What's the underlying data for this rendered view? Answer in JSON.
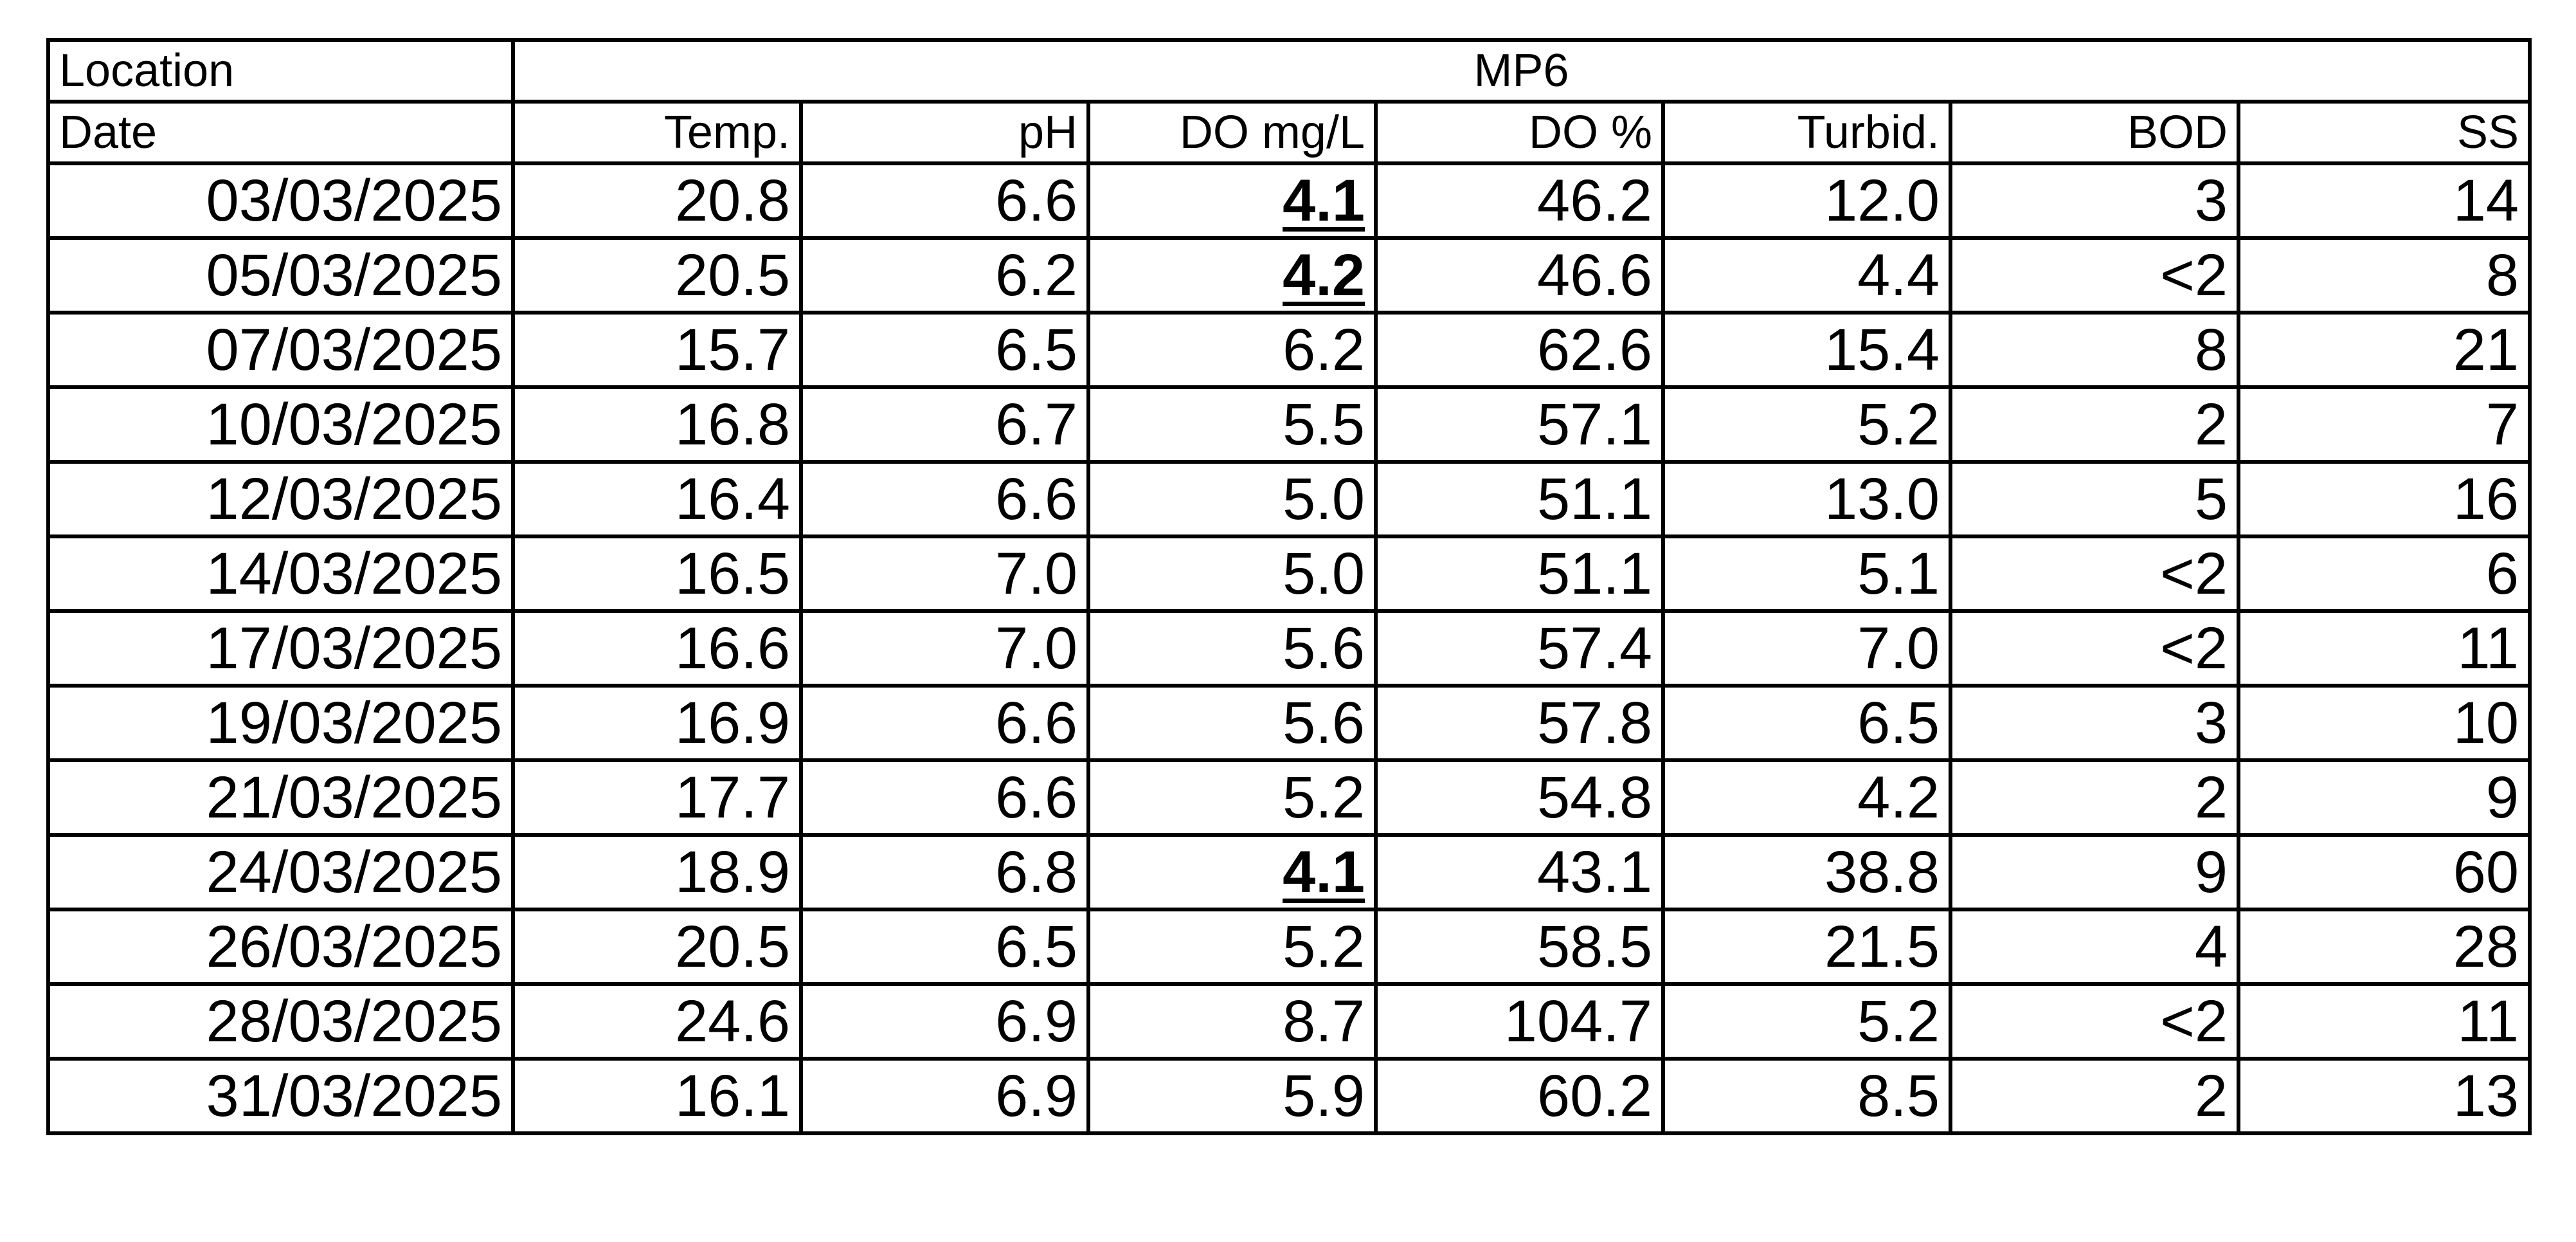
{
  "header": {
    "location_label": "Location",
    "location": "MP6",
    "date_label": "Date",
    "columns": [
      "Temp.",
      "pH",
      "DO mg/L",
      "DO %",
      "Turbid.",
      "BOD",
      "SS"
    ]
  },
  "table": {
    "rows": [
      [
        "03/03/2025",
        "20.8",
        "6.6",
        "4.1",
        "46.2",
        "12.0",
        "3",
        "14"
      ],
      [
        "05/03/2025",
        "20.5",
        "6.2",
        "4.2",
        "46.6",
        "4.4",
        "<2",
        "8"
      ],
      [
        "07/03/2025",
        "15.7",
        "6.5",
        "6.2",
        "62.6",
        "15.4",
        "8",
        "21"
      ],
      [
        "10/03/2025",
        "16.8",
        "6.7",
        "5.5",
        "57.1",
        "5.2",
        "2",
        "7"
      ],
      [
        "12/03/2025",
        "16.4",
        "6.6",
        "5.0",
        "51.1",
        "13.0",
        "5",
        "16"
      ],
      [
        "14/03/2025",
        "16.5",
        "7.0",
        "5.0",
        "51.1",
        "5.1",
        "<2",
        "6"
      ],
      [
        "17/03/2025",
        "16.6",
        "7.0",
        "5.6",
        "57.4",
        "7.0",
        "<2",
        "11"
      ],
      [
        "19/03/2025",
        "16.9",
        "6.6",
        "5.6",
        "57.8",
        "6.5",
        "3",
        "10"
      ],
      [
        "21/03/2025",
        "17.7",
        "6.6",
        "5.2",
        "54.8",
        "4.2",
        "2",
        "9"
      ],
      [
        "24/03/2025",
        "18.9",
        "6.8",
        "4.1",
        "43.1",
        "38.8",
        "9",
        "60"
      ],
      [
        "26/03/2025",
        "20.5",
        "6.5",
        "5.2",
        "58.5",
        "21.5",
        "4",
        "28"
      ],
      [
        "28/03/2025",
        "24.6",
        "6.9",
        "8.7",
        "104.7",
        "5.2",
        "<2",
        "11"
      ],
      [
        "31/03/2025",
        "16.1",
        "6.9",
        "5.9",
        "60.2",
        "8.5",
        "2",
        "13"
      ]
    ],
    "emphasized_cells": [
      [
        0,
        3
      ],
      [
        1,
        3
      ],
      [
        9,
        3
      ]
    ]
  }
}
